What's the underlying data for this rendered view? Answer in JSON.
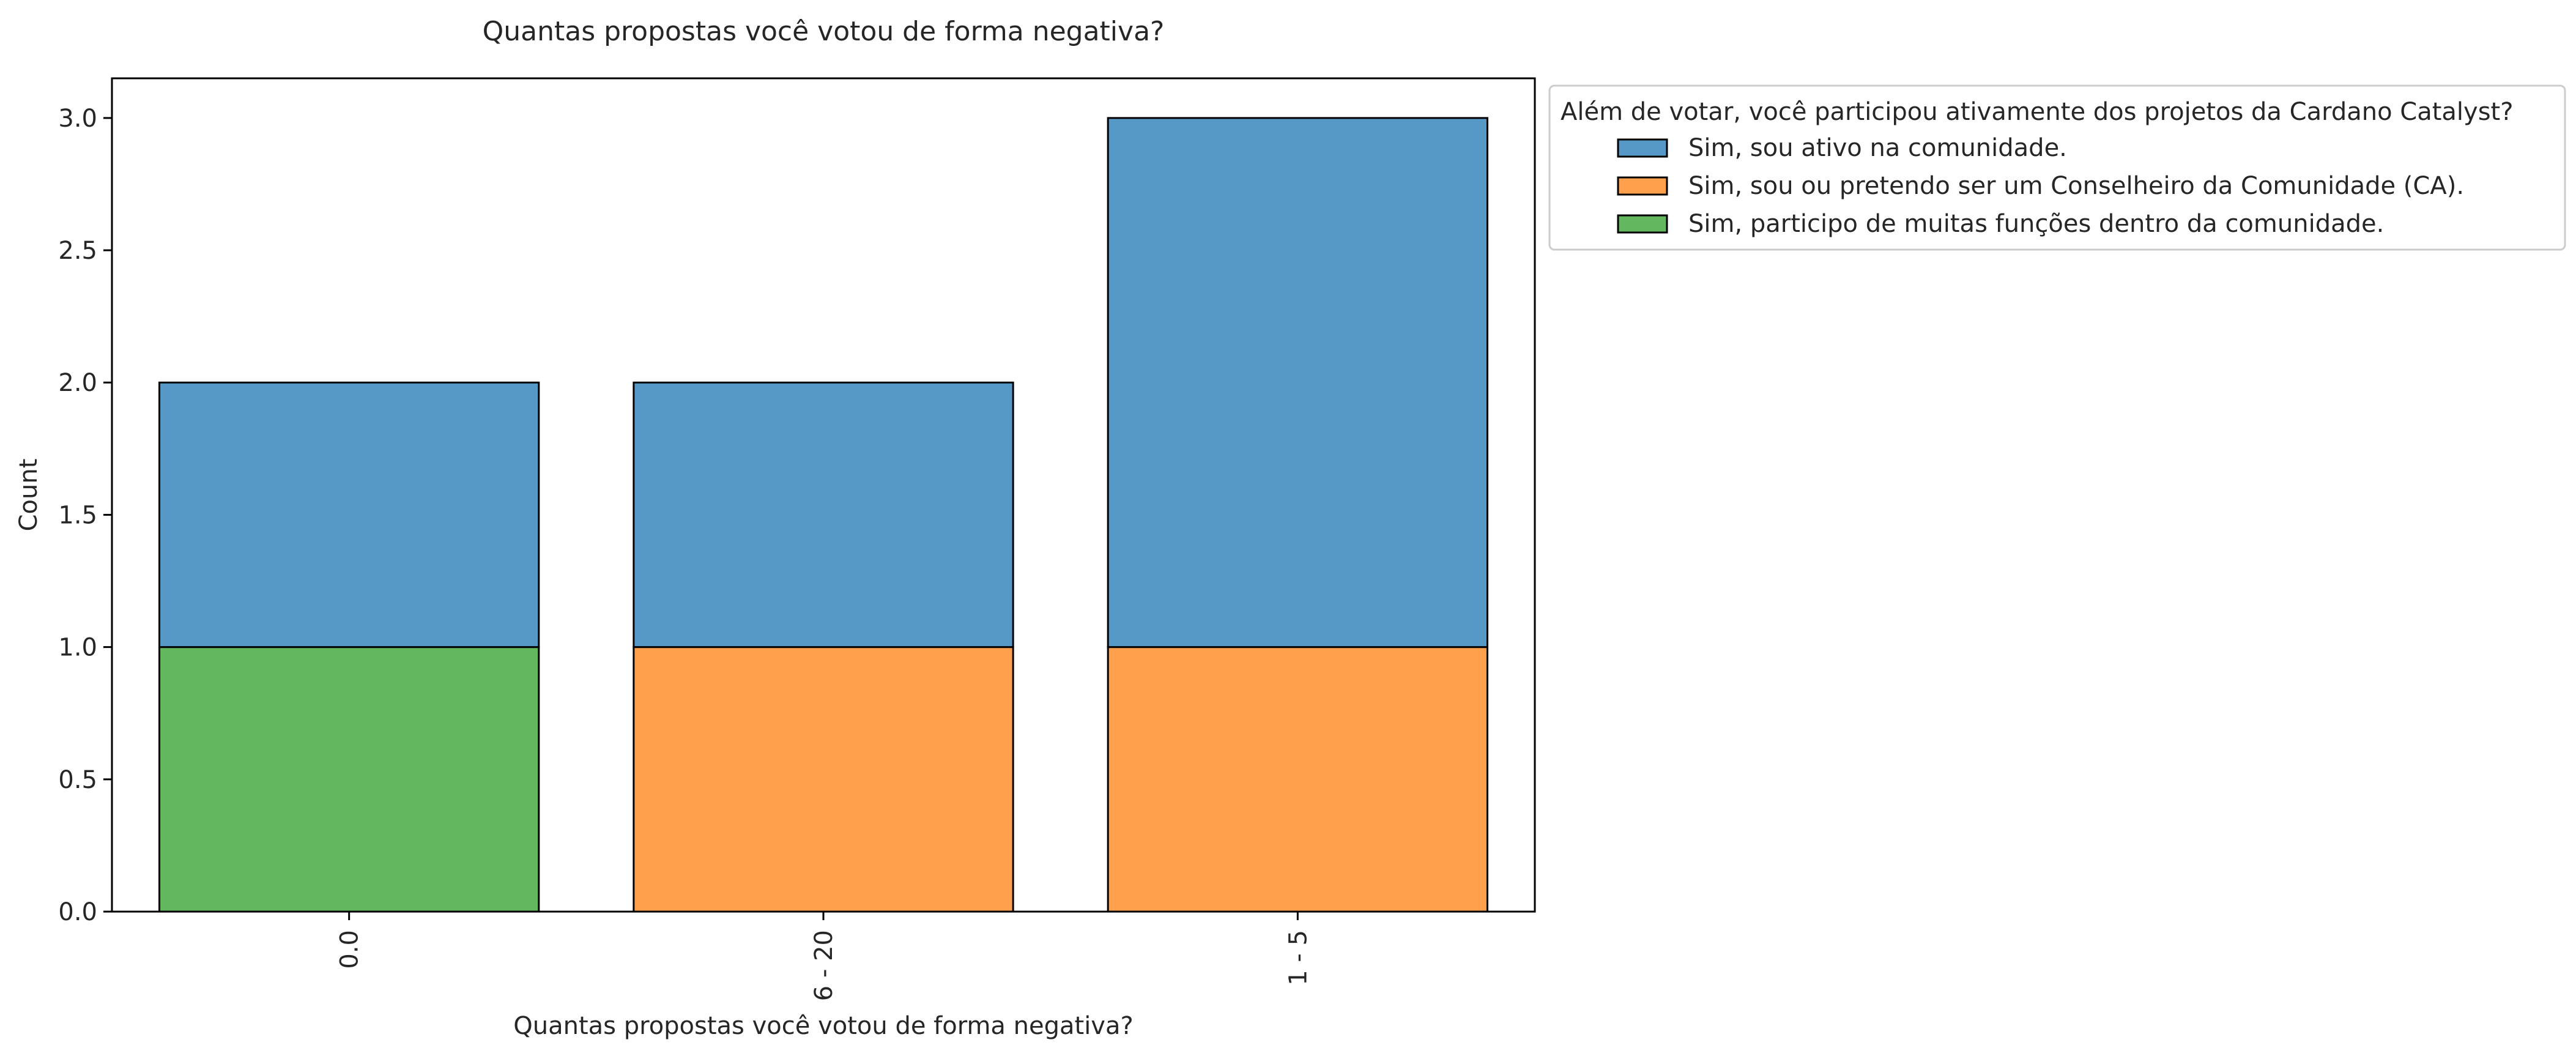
{
  "chart_data": {
    "type": "bar",
    "stacked": true,
    "title": "Quantas propostas você votou de forma negativa?",
    "xlabel": "Quantas propostas você votou de forma negativa?",
    "ylabel": "Count",
    "categories": [
      "0.0",
      "6 - 20",
      "1 - 5"
    ],
    "ylim": [
      0,
      3.15
    ],
    "yticks": [
      "0.0",
      "0.5",
      "1.0",
      "1.5",
      "2.0",
      "2.5",
      "3.0"
    ],
    "ytick_values": [
      0,
      0.5,
      1.0,
      1.5,
      2.0,
      2.5,
      3.0
    ],
    "grid": false,
    "legend": {
      "title": "Além de votar, você participou ativamente dos projetos da Cardano Catalyst?",
      "placement": "outside-top-right"
    },
    "series": [
      {
        "name": "Sim, participo de muitas funções dentro da comunidade.",
        "color": "#63b85f",
        "values": [
          1,
          0,
          0
        ]
      },
      {
        "name": "Sim, sou ou pretendo ser um Conselheiro da Comunidade (CA).",
        "color": "#fea04c",
        "values": [
          0,
          1,
          1
        ]
      },
      {
        "name": "Sim, sou ativo na comunidade.",
        "color": "#5799c6",
        "values": [
          1,
          1,
          2
        ]
      }
    ],
    "legend_order": [
      2,
      1,
      0
    ]
  }
}
